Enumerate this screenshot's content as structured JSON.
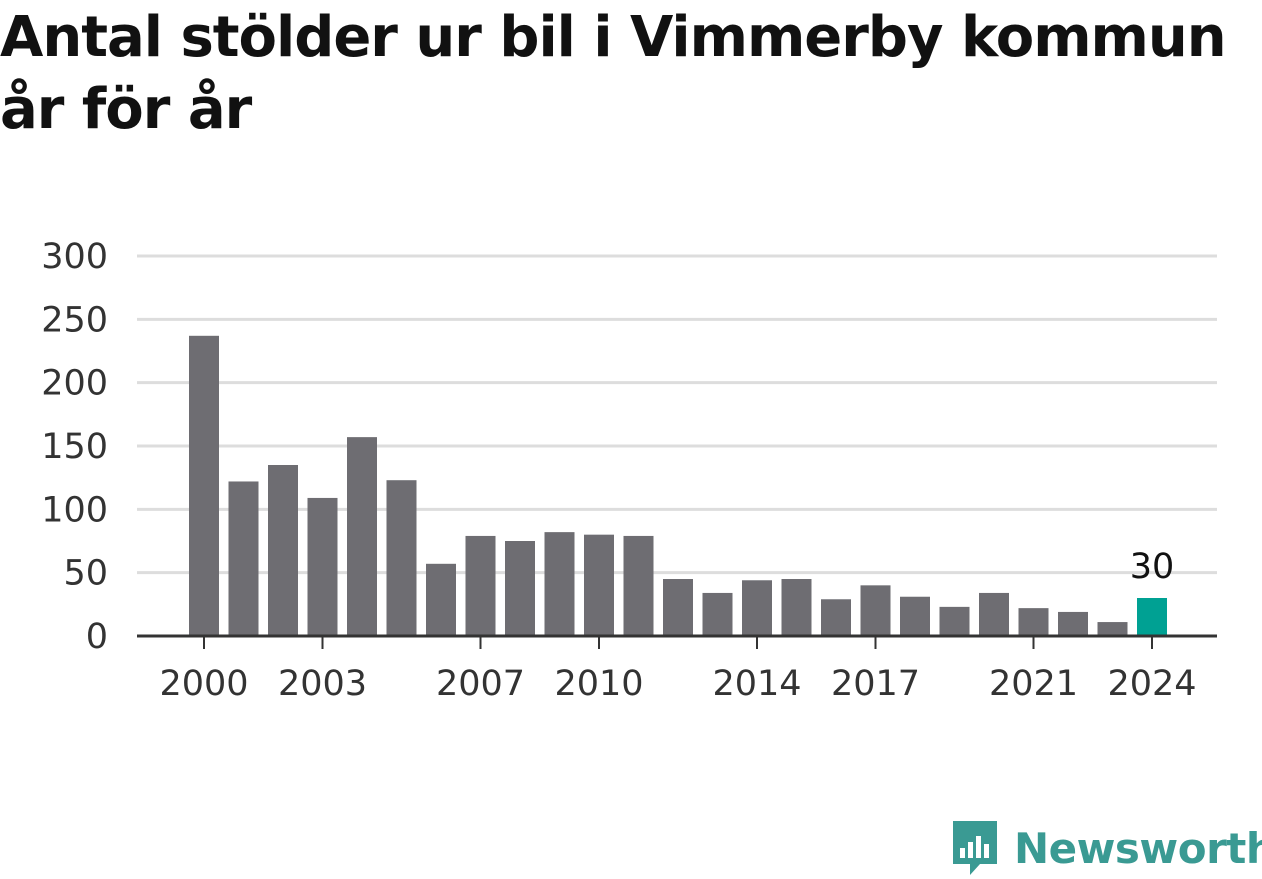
{
  "title": "Antal stölder ur bil i Vimmerby kommun år för år",
  "brand": {
    "name": "Newsworthy",
    "icon": "newsworthy-logo-icon",
    "color": "#3a9a93"
  },
  "colors": {
    "bar": "#6e6d72",
    "highlight": "#00a193",
    "grid": "#dddddd",
    "axis": "#333333"
  },
  "chart_data": {
    "type": "bar",
    "categories": [
      "2000",
      "2001",
      "2002",
      "2003",
      "2004",
      "2005",
      "2006",
      "2007",
      "2008",
      "2009",
      "2010",
      "2011",
      "2012",
      "2013",
      "2014",
      "2015",
      "2016",
      "2017",
      "2018",
      "2019",
      "2020",
      "2021",
      "2022",
      "2023",
      "2024"
    ],
    "values": [
      237,
      122,
      135,
      109,
      157,
      123,
      57,
      79,
      75,
      82,
      80,
      79,
      45,
      34,
      44,
      45,
      29,
      40,
      31,
      23,
      34,
      22,
      19,
      11,
      30
    ],
    "title": "Antal stölder ur bil i Vimmerby kommun år för år",
    "xlabel": "",
    "ylabel": "",
    "ylim": [
      0,
      300
    ],
    "yticks": [
      0,
      50,
      100,
      150,
      200,
      250,
      300
    ],
    "xtick_labels": [
      "2000",
      "2003",
      "2007",
      "2010",
      "2014",
      "2017",
      "2021",
      "2024"
    ],
    "highlight": {
      "category": "2024",
      "label": "30"
    },
    "grid": true,
    "legend": "none"
  }
}
